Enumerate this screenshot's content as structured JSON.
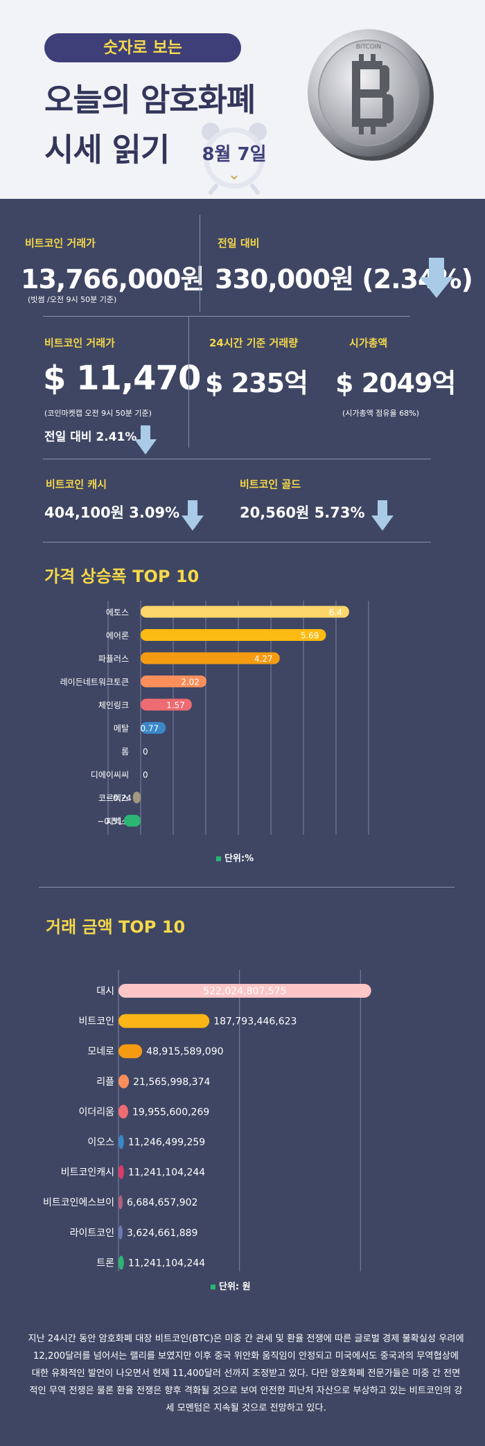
{
  "header": {
    "pill": "숫자로 보는",
    "title_line1": "오늘의 암호화폐",
    "title_line2": "시세 읽기",
    "date": "8월 7일",
    "coin_text": "BITCOIN"
  },
  "stats": {
    "btc_krw_label": "비트코인 거래가",
    "btc_krw_value": "13,766,000원",
    "btc_krw_note": "(빗썸 /오전 9시 50분 기준)",
    "prev_label": "전일 대비",
    "prev_value": "330,000원 (2.34%)",
    "btc_usd_label": "비트코인 거래가",
    "btc_usd_value": "$ 11,470",
    "btc_usd_note": "(코인마켓캡 오전 9시 50분 기준)",
    "btc_usd_change": "전일 대비 2.41%",
    "volume_label": "24시간 기준 거래량",
    "volume_value": "$ 235억",
    "mcap_label": "시가총액",
    "mcap_value": "$ 2049억",
    "mcap_note": "(시가총액 점유율 68%)",
    "bch_label": "비트코인 캐시",
    "bch_value": "404,100원  3.09%",
    "btg_label": "비트코인 골드",
    "btg_value": "20,560원  5.73%"
  },
  "colors": {
    "background": "#3f4663",
    "accent": "#f6d94a",
    "arrow": "#a9cbe8"
  },
  "chart_data": [
    {
      "type": "bar",
      "title": "가격 상승폭 TOP 10",
      "unit": "단위:%",
      "categories": [
        "에토스",
        "에어론",
        "파퓰러스",
        "레이든네트워크토큰",
        "체인링크",
        "메탈",
        "롬",
        "디에이씨씨",
        "코르텍스",
        "피벡스"
      ],
      "values": [
        6.4,
        5.69,
        4.27,
        2.02,
        1.57,
        0.77,
        0,
        0,
        -0.24,
        -0.51
      ],
      "value_labels": [
        "6.4",
        "5.69",
        "4.27",
        "2.02",
        "1.57",
        "0.77",
        "0",
        "0",
        "−0.24",
        "−0.51"
      ],
      "colors": [
        "#fdd66b",
        "#fbbb12",
        "#f59b12",
        "#fb8f5b",
        "#ef6b72",
        "#3b87c8",
        "#6b7ab0",
        "#6b7ab0",
        "#a1997e",
        "#2bb673"
      ],
      "xlim": [
        -1,
        7
      ],
      "grid": true
    },
    {
      "type": "bar",
      "title": "거래 금액 TOP 10",
      "unit": "단위: 원",
      "categories": [
        "대시",
        "비트코인",
        "모네로",
        "리플",
        "이더리움",
        "이오스",
        "비트코인캐시",
        "비트코인에스브이",
        "라이트코인",
        "트론"
      ],
      "values": [
        522024807575,
        187793446623,
        48915589090,
        21565998374,
        19955600269,
        11246499259,
        11241104244,
        6684657902,
        3624661889,
        11241104244
      ],
      "value_labels": [
        "522,024,807,575",
        "187,793,446,623",
        "48,915,589,090",
        "21,565,998,374",
        "19,955,600,269",
        "11,246,499,259",
        "11,241,104,244",
        "6,684,657,902",
        "3,624,661,889",
        "11,241,104,244"
      ],
      "colors": [
        "#fcc5c6",
        "#fbb516",
        "#f59b12",
        "#fb8f5b",
        "#ef6b72",
        "#3b87c8",
        "#e0386b",
        "#b4607c",
        "#6b7ab0",
        "#2bb673"
      ],
      "xlim": [
        0,
        750000000000
      ],
      "grid": true
    }
  ],
  "body": "지난 24시간 동안 암호화폐 대장 비트코인(BTC)은 미중 간 관세 및 환율 전쟁에 따른 글로벌 경제 불확실성 우려에 12,200달러를 넘어서는 랠리를 보였지만 이후 중국 위안화 움직임이 안정되고 미국에서도 중국과의 무역협상에 대한 유화적인 발언이 나오면서 현재 11,400달러 선까지 조정받고 있다. 다만 암호화폐 전문가들은 미중 간 전면적인 무역 전쟁은 물론 환율 전쟁은 향후 격화될 것으로 보여 안전한 피난처 자산으로 부상하고 있는 비트코인의 강세 모멘텀은 지속될 것으로 전망하고 있다."
}
